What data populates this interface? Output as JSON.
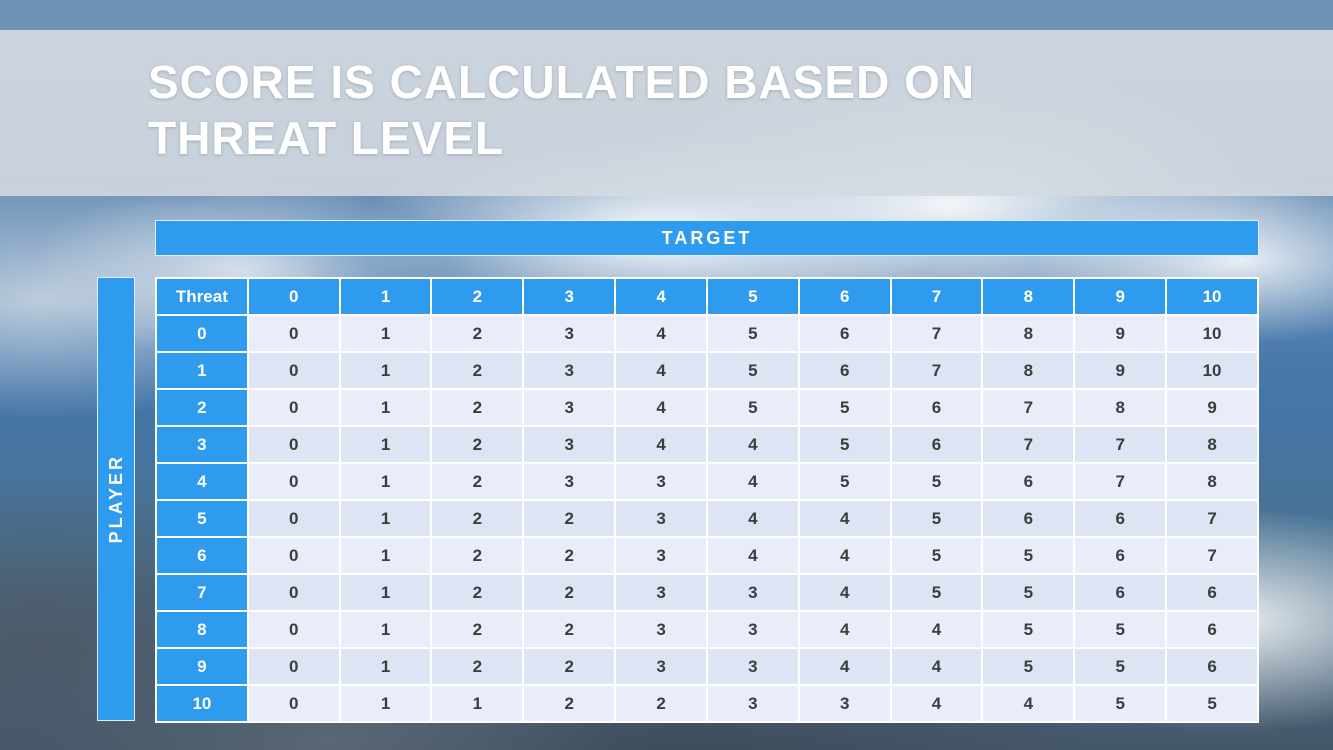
{
  "slide": {
    "title_line1": "SCORE IS CALCULATED BASED ON",
    "title_line2": "THREAT LEVEL"
  },
  "table": {
    "target_label": "TARGET",
    "player_label": "PLAYER",
    "corner_label": "Threat",
    "col_headers": [
      "0",
      "1",
      "2",
      "3",
      "4",
      "5",
      "6",
      "7",
      "8",
      "9",
      "10"
    ],
    "rows": [
      {
        "threat": "0",
        "values": [
          "0",
          "1",
          "2",
          "3",
          "4",
          "5",
          "6",
          "7",
          "8",
          "9",
          "10"
        ]
      },
      {
        "threat": "1",
        "values": [
          "0",
          "1",
          "2",
          "3",
          "4",
          "5",
          "6",
          "7",
          "8",
          "9",
          "10"
        ]
      },
      {
        "threat": "2",
        "values": [
          "0",
          "1",
          "2",
          "3",
          "4",
          "5",
          "5",
          "6",
          "7",
          "8",
          "9"
        ]
      },
      {
        "threat": "3",
        "values": [
          "0",
          "1",
          "2",
          "3",
          "4",
          "4",
          "5",
          "6",
          "7",
          "7",
          "8"
        ]
      },
      {
        "threat": "4",
        "values": [
          "0",
          "1",
          "2",
          "3",
          "3",
          "4",
          "5",
          "5",
          "6",
          "7",
          "8"
        ]
      },
      {
        "threat": "5",
        "values": [
          "0",
          "1",
          "2",
          "2",
          "3",
          "4",
          "4",
          "5",
          "6",
          "6",
          "7"
        ]
      },
      {
        "threat": "6",
        "values": [
          "0",
          "1",
          "2",
          "2",
          "3",
          "4",
          "4",
          "5",
          "5",
          "6",
          "7"
        ]
      },
      {
        "threat": "7",
        "values": [
          "0",
          "1",
          "2",
          "2",
          "3",
          "3",
          "4",
          "5",
          "5",
          "6",
          "6"
        ]
      },
      {
        "threat": "8",
        "values": [
          "0",
          "1",
          "2",
          "2",
          "3",
          "3",
          "4",
          "4",
          "5",
          "5",
          "6"
        ]
      },
      {
        "threat": "9",
        "values": [
          "0",
          "1",
          "2",
          "2",
          "3",
          "3",
          "4",
          "4",
          "5",
          "5",
          "6"
        ]
      },
      {
        "threat": "10",
        "values": [
          "0",
          "1",
          "1",
          "2",
          "2",
          "3",
          "3",
          "4",
          "4",
          "5",
          "5"
        ]
      }
    ]
  },
  "colors": {
    "accent_blue": "#2e9bef",
    "top_strip": "#6e93b5",
    "title_band": "#d4dae0",
    "row_stripe_light": "#e9edf9",
    "row_stripe_dark": "#dde4f4",
    "title_text": "#ffffff"
  }
}
